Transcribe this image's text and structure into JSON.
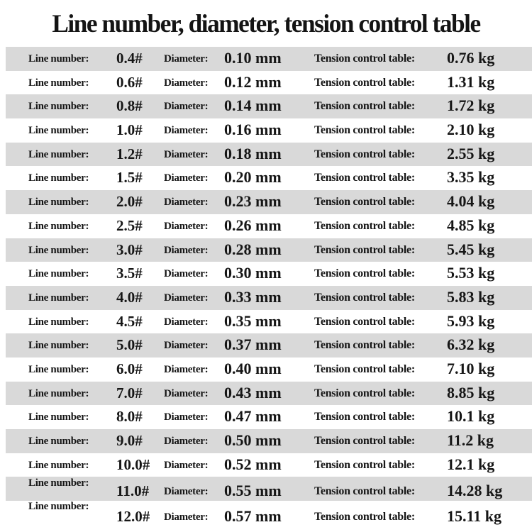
{
  "title": "Line number, diameter, tension control table",
  "colors": {
    "band": "#d9d9d9",
    "background": "#ffffff",
    "text": "#161616"
  },
  "labels": {
    "line_number": "Line number:",
    "diameter": "Diameter:",
    "tension": "Tension control table:"
  },
  "chart_data": {
    "type": "table",
    "title": "Line number, diameter, tension control table",
    "columns": [
      "Line number",
      "Diameter",
      "Tension control table"
    ],
    "rows": [
      [
        "0.4#",
        "0.10 mm",
        "0.76 kg"
      ],
      [
        "0.6#",
        "0.12 mm",
        "1.31 kg"
      ],
      [
        "0.8#",
        "0.14 mm",
        "1.72 kg"
      ],
      [
        "1.0#",
        "0.16 mm",
        "2.10 kg"
      ],
      [
        "1.2#",
        "0.18 mm",
        "2.55 kg"
      ],
      [
        "1.5#",
        "0.20 mm",
        "3.35 kg"
      ],
      [
        "2.0#",
        "0.23 mm",
        "4.04 kg"
      ],
      [
        "2.5#",
        "0.26 mm",
        "4.85 kg"
      ],
      [
        "3.0#",
        "0.28 mm",
        "5.45 kg"
      ],
      [
        "3.5#",
        "0.30 mm",
        "5.53 kg"
      ],
      [
        "4.0#",
        "0.33 mm",
        "5.83 kg"
      ],
      [
        "4.5#",
        "0.35 mm",
        "5.93 kg"
      ],
      [
        "5.0#",
        "0.37 mm",
        "6.32 kg"
      ],
      [
        "6.0#",
        "0.40 mm",
        "7.10 kg"
      ],
      [
        "7.0#",
        "0.43 mm",
        "8.85 kg"
      ],
      [
        "8.0#",
        "0.47 mm",
        "10.1 kg"
      ],
      [
        "9.0#",
        "0.50 mm",
        "11.2 kg"
      ],
      [
        "10.0#",
        "0.52 mm",
        "12.1 kg"
      ],
      [
        "11.0#",
        "0.55 mm",
        "14.28 kg"
      ],
      [
        "12.0#",
        "0.57 mm",
        "15.11 kg"
      ]
    ],
    "layout": {
      "striped": true,
      "stripe_pattern": "odd rows shaded",
      "header_row": false
    }
  }
}
